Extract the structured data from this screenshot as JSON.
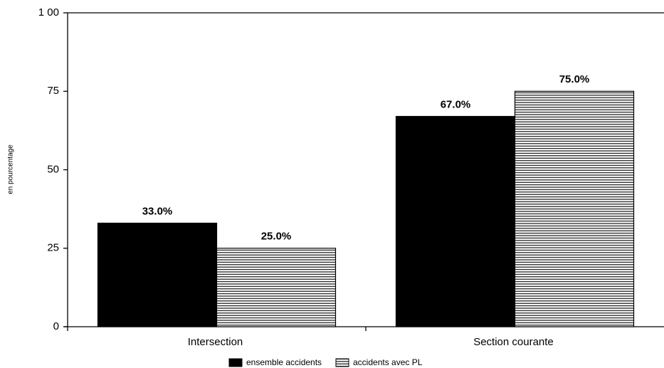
{
  "chart_data": {
    "type": "bar",
    "ylabel": "en pourcentage",
    "categories": [
      "Intersection",
      "Section courante"
    ],
    "series": [
      {
        "name": "ensemble accidents",
        "color": "#000000",
        "values": [
          33,
          67
        ],
        "value_labels": [
          "33.0%",
          "67.0%"
        ]
      },
      {
        "name": "accidents avec PL",
        "color": "#000000",
        "hatch": "horizontal",
        "values": [
          25,
          75
        ],
        "value_labels": [
          "25.0%",
          "75.0%"
        ]
      }
    ],
    "ylim": [
      0,
      100
    ],
    "yticks": [
      0,
      25,
      50,
      75,
      {
        "value": 100,
        "label": "1 00"
      }
    ],
    "legend": "bottom"
  }
}
